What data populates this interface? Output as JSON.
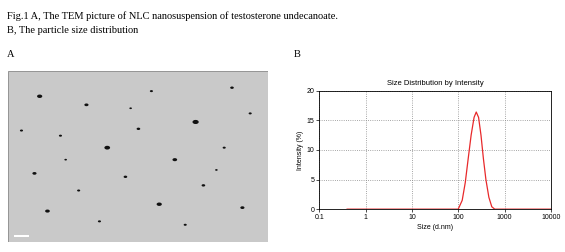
{
  "caption": {
    "lines": [
      "Fig.1 A, The TEM picture of NLC nanosuspension of testosterone undecanoate.",
      "B, The particle size distribution"
    ]
  },
  "panel_labels": [
    "A",
    "B"
  ],
  "chart_data": {
    "type": "line",
    "title": "Size Distribution by Intensity",
    "xlabel": "Size (d.nm)",
    "ylabel": "Intensity (%)",
    "x": [
      0.4,
      1,
      10,
      100,
      122,
      142,
      164,
      190,
      220,
      245,
      275,
      310,
      350,
      396,
      459,
      531,
      615,
      1000,
      10000
    ],
    "values": [
      0,
      0,
      0,
      0,
      1.5,
      4.5,
      8.5,
      12.5,
      15.5,
      16.4,
      15.5,
      12.5,
      8.5,
      5,
      2,
      0.4,
      0,
      0,
      0
    ],
    "color": "#e8292b",
    "xlim": [
      0.1,
      10000
    ],
    "xticks": [
      0.1,
      1,
      10,
      100,
      1000,
      10000
    ],
    "ylim": [
      0,
      20
    ],
    "yticks": [
      0,
      5,
      10,
      15,
      20
    ],
    "log": "x",
    "grid": true
  }
}
